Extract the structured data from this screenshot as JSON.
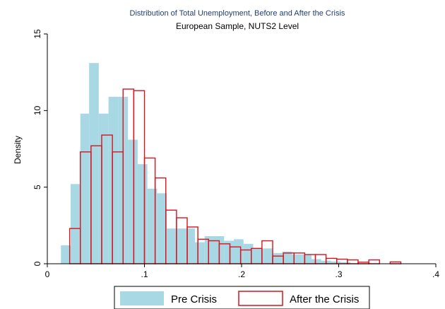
{
  "chart_data": {
    "type": "histogram",
    "title": "Distribution of Total Unemployment, Before and After the Crisis",
    "subtitle": "European Sample, NUTS2 Level",
    "ylabel": "Density",
    "xlabel": "",
    "xlim": [
      0,
      0.4
    ],
    "ylim": [
      0,
      15
    ],
    "xticks": [
      {
        "value": 0,
        "label": "0"
      },
      {
        "value": 0.1,
        "label": ".1"
      },
      {
        "value": 0.2,
        "label": ".2"
      },
      {
        "value": 0.3,
        "label": ".3"
      },
      {
        "value": 0.4,
        "label": ".4"
      }
    ],
    "yticks": [
      {
        "value": 0,
        "label": "0"
      },
      {
        "value": 5,
        "label": "5"
      },
      {
        "value": 10,
        "label": "10"
      },
      {
        "value": 15,
        "label": "15"
      }
    ],
    "grid": false,
    "legend_position": "bottom",
    "series": [
      {
        "name": "Pre Crisis",
        "style": "filled",
        "color": "#a8d8e4",
        "bins": [
          {
            "x0": 0.014,
            "x1": 0.024,
            "y": 1.2
          },
          {
            "x0": 0.024,
            "x1": 0.034,
            "y": 5.2
          },
          {
            "x0": 0.034,
            "x1": 0.043,
            "y": 9.8
          },
          {
            "x0": 0.043,
            "x1": 0.053,
            "y": 13.1
          },
          {
            "x0": 0.053,
            "x1": 0.063,
            "y": 9.8
          },
          {
            "x0": 0.063,
            "x1": 0.073,
            "y": 10.9
          },
          {
            "x0": 0.073,
            "x1": 0.083,
            "y": 10.9
          },
          {
            "x0": 0.083,
            "x1": 0.093,
            "y": 8.1
          },
          {
            "x0": 0.093,
            "x1": 0.103,
            "y": 6.5
          },
          {
            "x0": 0.103,
            "x1": 0.113,
            "y": 4.9
          },
          {
            "x0": 0.113,
            "x1": 0.123,
            "y": 4.6
          },
          {
            "x0": 0.123,
            "x1": 0.133,
            "y": 2.3
          },
          {
            "x0": 0.133,
            "x1": 0.143,
            "y": 2.3
          },
          {
            "x0": 0.143,
            "x1": 0.152,
            "y": 2.3
          },
          {
            "x0": 0.152,
            "x1": 0.162,
            "y": 1.4
          },
          {
            "x0": 0.162,
            "x1": 0.172,
            "y": 1.8
          },
          {
            "x0": 0.172,
            "x1": 0.182,
            "y": 1.8
          },
          {
            "x0": 0.182,
            "x1": 0.192,
            "y": 1.5
          },
          {
            "x0": 0.192,
            "x1": 0.202,
            "y": 1.6
          },
          {
            "x0": 0.202,
            "x1": 0.212,
            "y": 1.3
          },
          {
            "x0": 0.212,
            "x1": 0.222,
            "y": 1.0
          },
          {
            "x0": 0.222,
            "x1": 0.232,
            "y": 1.0
          },
          {
            "x0": 0.232,
            "x1": 0.242,
            "y": 0.7
          },
          {
            "x0": 0.242,
            "x1": 0.252,
            "y": 0.8
          },
          {
            "x0": 0.252,
            "x1": 0.262,
            "y": 0.6
          },
          {
            "x0": 0.262,
            "x1": 0.272,
            "y": 0.6
          },
          {
            "x0": 0.272,
            "x1": 0.282,
            "y": 0.3
          },
          {
            "x0": 0.282,
            "x1": 0.292,
            "y": 0.2
          },
          {
            "x0": 0.292,
            "x1": 0.302,
            "y": 0.15
          },
          {
            "x0": 0.302,
            "x1": 0.312,
            "y": 0.1
          }
        ]
      },
      {
        "name": "After the Crisis",
        "style": "outline",
        "color": "#d8141e",
        "bins": [
          {
            "x0": 0.023,
            "x1": 0.034,
            "y": 2.3
          },
          {
            "x0": 0.034,
            "x1": 0.045,
            "y": 7.3
          },
          {
            "x0": 0.045,
            "x1": 0.056,
            "y": 7.7
          },
          {
            "x0": 0.056,
            "x1": 0.067,
            "y": 8.4
          },
          {
            "x0": 0.067,
            "x1": 0.078,
            "y": 7.3
          },
          {
            "x0": 0.078,
            "x1": 0.089,
            "y": 11.4
          },
          {
            "x0": 0.089,
            "x1": 0.1,
            "y": 11.3
          },
          {
            "x0": 0.1,
            "x1": 0.111,
            "y": 6.9
          },
          {
            "x0": 0.111,
            "x1": 0.122,
            "y": 5.6
          },
          {
            "x0": 0.122,
            "x1": 0.133,
            "y": 3.5
          },
          {
            "x0": 0.133,
            "x1": 0.144,
            "y": 3.0
          },
          {
            "x0": 0.144,
            "x1": 0.155,
            "y": 2.4
          },
          {
            "x0": 0.155,
            "x1": 0.166,
            "y": 1.6
          },
          {
            "x0": 0.166,
            "x1": 0.177,
            "y": 1.5
          },
          {
            "x0": 0.177,
            "x1": 0.188,
            "y": 1.3
          },
          {
            "x0": 0.188,
            "x1": 0.199,
            "y": 1.1
          },
          {
            "x0": 0.199,
            "x1": 0.21,
            "y": 0.9
          },
          {
            "x0": 0.21,
            "x1": 0.221,
            "y": 1.0
          },
          {
            "x0": 0.221,
            "x1": 0.232,
            "y": 1.5
          },
          {
            "x0": 0.232,
            "x1": 0.243,
            "y": 0.5
          },
          {
            "x0": 0.243,
            "x1": 0.254,
            "y": 0.7
          },
          {
            "x0": 0.254,
            "x1": 0.265,
            "y": 0.7
          },
          {
            "x0": 0.265,
            "x1": 0.276,
            "y": 0.6
          },
          {
            "x0": 0.276,
            "x1": 0.287,
            "y": 0.6
          },
          {
            "x0": 0.287,
            "x1": 0.298,
            "y": 0.35
          },
          {
            "x0": 0.298,
            "x1": 0.309,
            "y": 0.3
          },
          {
            "x0": 0.309,
            "x1": 0.32,
            "y": 0.25
          },
          {
            "x0": 0.32,
            "x1": 0.331,
            "y": 0.1
          },
          {
            "x0": 0.331,
            "x1": 0.342,
            "y": 0.25
          },
          {
            "x0": 0.342,
            "x1": 0.353,
            "y": 0.0
          },
          {
            "x0": 0.353,
            "x1": 0.364,
            "y": 0.12
          }
        ]
      }
    ]
  }
}
